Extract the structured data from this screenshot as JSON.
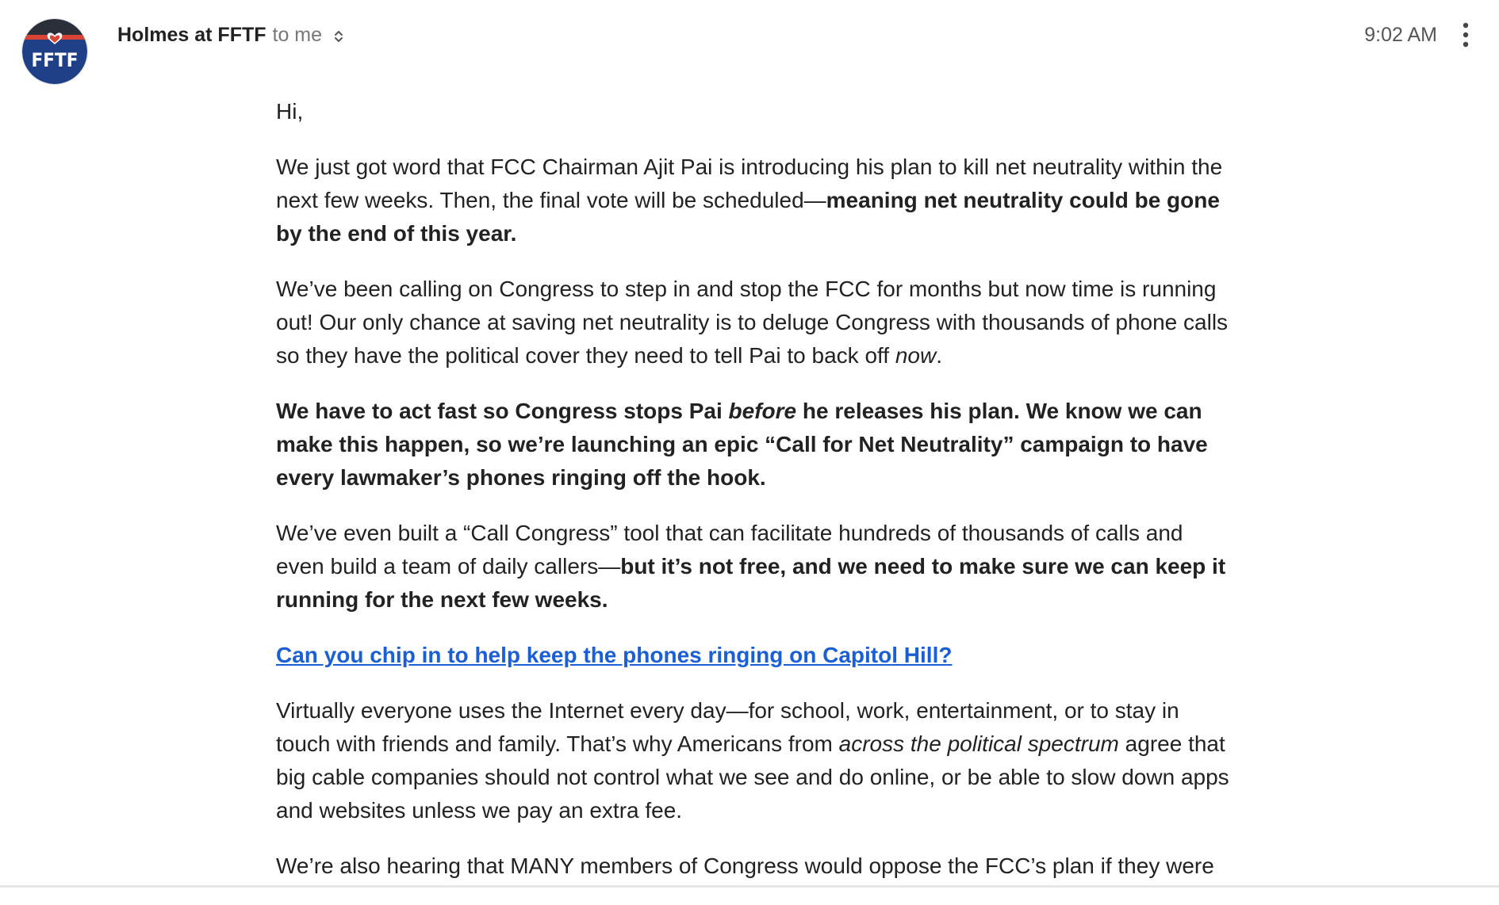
{
  "header": {
    "sender_name": "Holmes at FFTF",
    "recipient": "to me",
    "time": "9:02 AM",
    "avatar": {
      "text": "FFTF",
      "bg_color": "#1f3f86",
      "stripe_color": "#d94436",
      "heart_color": "#d94436"
    },
    "details_icon": "chevron-updown-icon",
    "menu_icon": "more-vertical-icon"
  },
  "email": {
    "greeting": "Hi,",
    "p1": {
      "text": "We just got word that FCC Chairman Ajit Pai is introducing his plan to kill net neutrality within the next few weeks. Then, the final vote will be scheduled—",
      "bold": "meaning net neutrality could be gone by the end of this year."
    },
    "p2": {
      "text": "We’ve been calling on Congress to step in and stop the FCC for months but now time is running out! Our only chance at saving net neutrality is to deluge Congress with thousands of phone calls so they have the political cover they need to tell Pai to back off ",
      "italic": "now",
      "end": "."
    },
    "p3": {
      "bold_a": "We have to act fast so Congress stops Pai ",
      "bold_italic": "before",
      "bold_b": " he releases his plan. We know we can make this happen, so we’re launching an epic “Call for Net Neutrality” campaign to have every lawmaker’s phones ringing off the hook."
    },
    "p4": {
      "text": "We’ve even built a “Call Congress” tool that can facilitate hundreds of thousands of calls and even build a team of daily callers—",
      "bold": "but it’s not free, and we need to make sure we can keep it running for the next few weeks."
    },
    "cta_link": "Can you chip in to help keep the phones ringing on Capitol Hill?",
    "p5": {
      "text_a": "Virtually everyone uses the Internet every day—for school, work, entertainment, or to stay in touch with friends and family. That’s why Americans from ",
      "italic": "across the political spectrum",
      "text_b": " agree that big cable companies should not control what we see and do online, or be able to slow down apps and websites unless we pay an extra fee."
    },
    "p6": {
      "text": "We’re also hearing that MANY members of Congress would oppose the FCC’s plan if they were"
    }
  }
}
